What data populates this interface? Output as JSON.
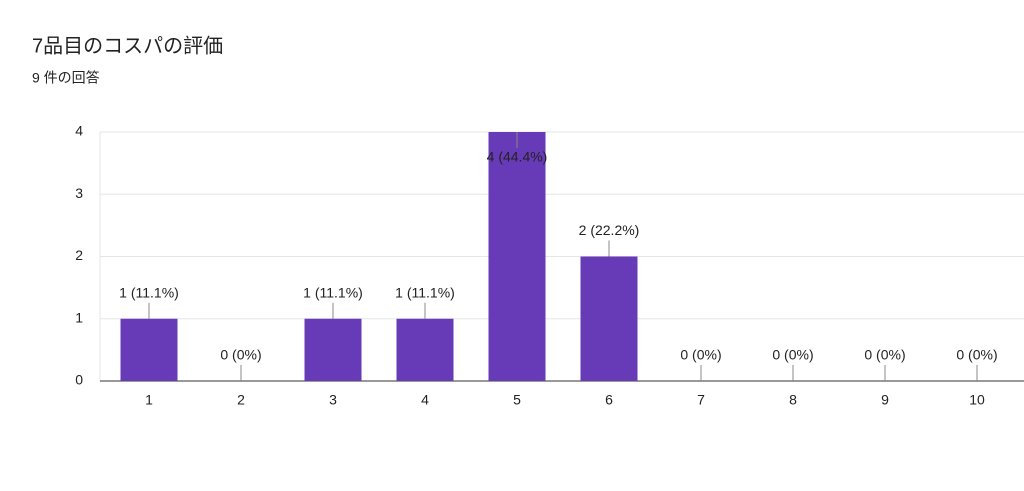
{
  "chart_data": {
    "type": "bar",
    "title": "7品目のコスパの評価",
    "subtitle": "9 件の回答",
    "categories": [
      "1",
      "2",
      "3",
      "4",
      "5",
      "6",
      "7",
      "8",
      "9",
      "10"
    ],
    "values": [
      1,
      0,
      1,
      1,
      4,
      2,
      0,
      0,
      0,
      0
    ],
    "value_labels": [
      "1 (11.1%)",
      "0 (0%)",
      "1 (11.1%)",
      "1 (11.1%)",
      "4 (44.4%)",
      "2 (22.2%)",
      "0 (0%)",
      "0 (0%)",
      "0 (0%)",
      "0 (0%)"
    ],
    "color": "#673ab7",
    "ylim": [
      0,
      4
    ],
    "yticks": [
      0,
      1,
      2,
      3,
      4
    ],
    "grid": true
  }
}
